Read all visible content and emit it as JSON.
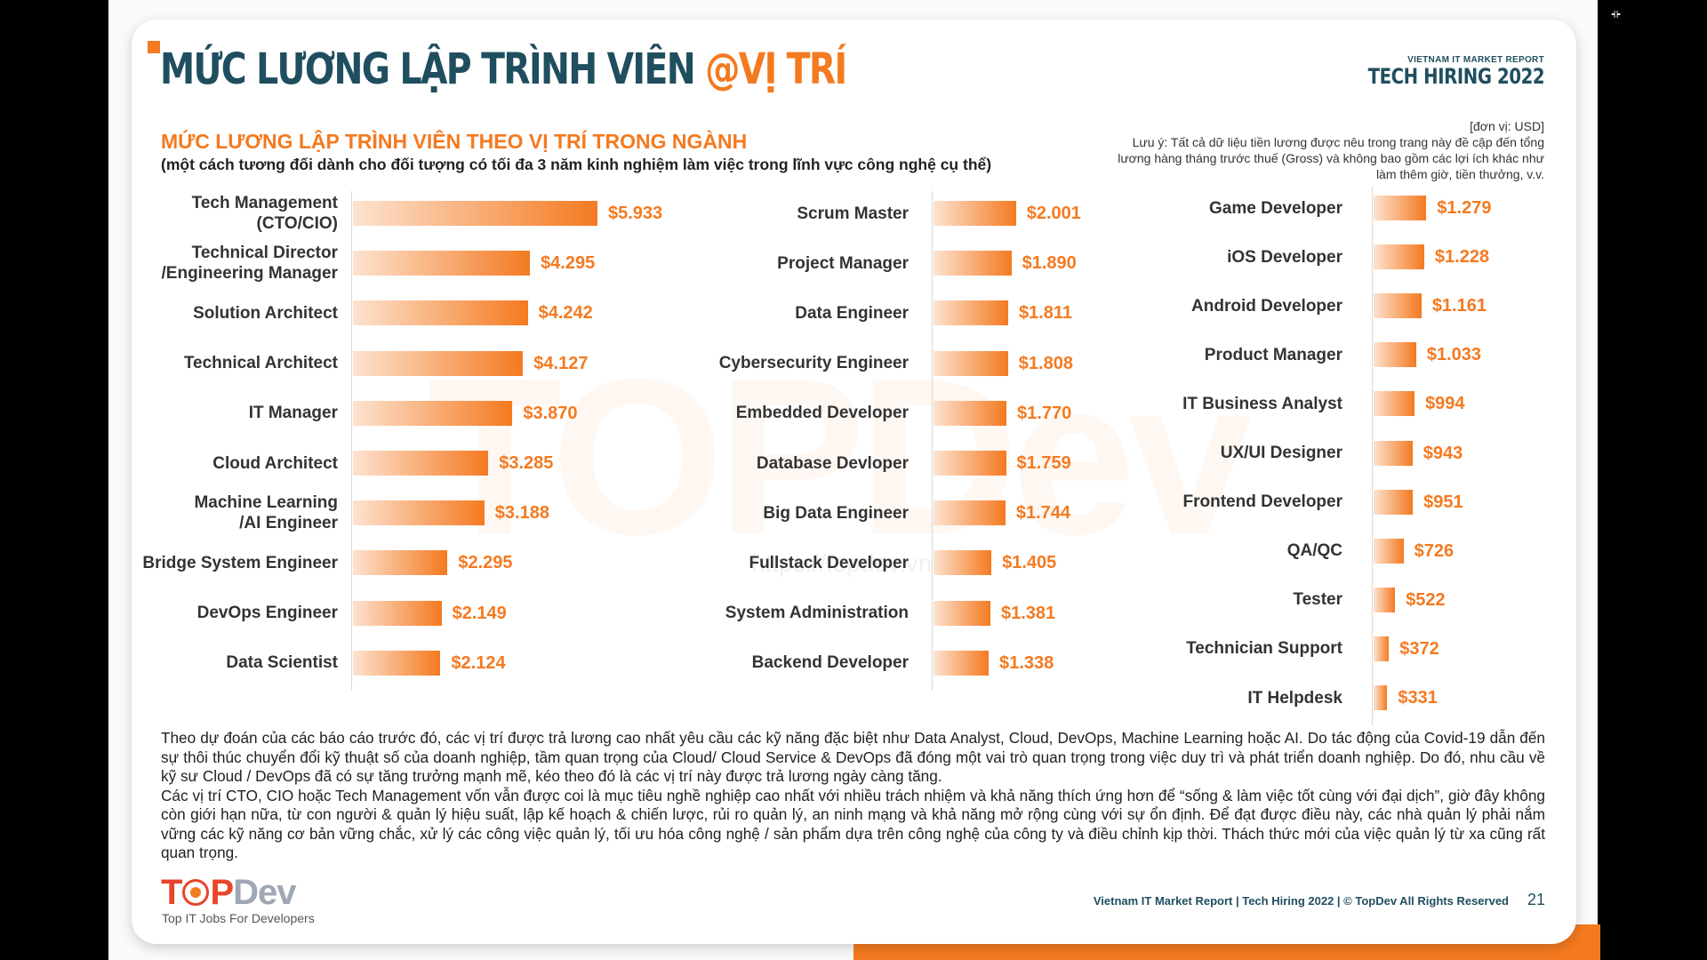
{
  "header": {
    "title_main": "MỨC LƯƠNG LẬP TRÌNH VIÊN",
    "title_accent": "@VỊ TRÍ",
    "brand_small": "VIETNAM IT MARKET REPORT",
    "brand_big": "TECH HIRING 2022"
  },
  "section": {
    "title": "MỨC LƯƠNG LẬP TRÌNH VIÊN THEO VỊ TRÍ TRONG NGÀNH",
    "subtitle": "(một cách tương đối dành cho đối tượng có tối đa 3 năm kinh nghiệm làm việc trong lĩnh vực công nghệ cụ thể)",
    "unit": "[đơn vị: USD]",
    "note": "Lưu ý: Tất cả dữ liệu tiền lương được nêu trong trang này đề cập đến tổng lương hàng tháng trước thuế (Gross) và không bao gồm các lợi ích khác như làm thêm giờ, tiền thưởng, v.v."
  },
  "watermark": {
    "logo": "TOPDev",
    "url": "https://topdev.vn"
  },
  "chart_data": {
    "type": "bar",
    "title": "MỨC LƯƠNG LẬP TRÌNH VIÊN THEO VỊ TRÍ TRONG NGÀNH",
    "unit": "USD",
    "columns": [
      {
        "categories": [
          "Tech Management\n(CTO/CIO)",
          "Technical Director\n/Engineering Manager",
          "Solution Architect",
          "Technical Architect",
          "IT Manager",
          "Cloud Architect",
          "Machine Learning\n/AI Engineer",
          "Bridge System Engineer",
          "DevOps Engineer",
          "Data Scientist"
        ],
        "values": [
          5933,
          4295,
          4242,
          4127,
          3870,
          3285,
          3188,
          2295,
          2149,
          2124
        ],
        "labels": [
          "$5.933",
          "$4.295",
          "$4.242",
          "$4.127",
          "$3.870",
          "$3.285",
          "$3.188",
          "$2.295",
          "$2.149",
          "$2.124"
        ]
      },
      {
        "categories": [
          "Scrum Master",
          "Project Manager",
          "Data Engineer",
          "Cybersecurity Engineer",
          "Embedded Developer",
          "Database Devloper",
          "Big Data Engineer",
          "Fullstack Developer",
          "System Administration",
          "Backend Developer"
        ],
        "values": [
          2001,
          1890,
          1811,
          1808,
          1770,
          1759,
          1744,
          1405,
          1381,
          1338
        ],
        "labels": [
          "$2.001",
          "$1.890",
          "$1.811",
          "$1.808",
          "$1.770",
          "$1.759",
          "$1.744",
          "$1.405",
          "$1.381",
          "$1.338"
        ]
      },
      {
        "categories": [
          "Game Developer",
          "iOS Developer",
          "Android Developer",
          "Product Manager",
          "IT Business Analyst",
          "UX/UI Designer",
          "Frontend Developer",
          "QA/QC",
          "Tester",
          "Technician Support",
          "IT Helpdesk"
        ],
        "values": [
          1279,
          1228,
          1161,
          1033,
          994,
          943,
          951,
          726,
          522,
          372,
          331
        ],
        "labels": [
          "$1.279",
          "$1.228",
          "$1.161",
          "$1.033",
          "$994",
          "$943",
          "$951",
          "$726",
          "$522",
          "$372",
          "$331"
        ]
      }
    ]
  },
  "paragraph": {
    "p1": "Theo dự đoán của các báo cáo trước đó, các vị trí được trả lương cao nhất yêu cầu các kỹ năng đặc biệt như Data Analyst, Cloud, DevOps, Machine Learning hoặc AI. Do tác động của Covid-19 dẫn đến sự thôi thúc chuyển đổi kỹ thuật số của doanh nghiệp, tầm quan trọng của Cloud/ Cloud Service & DevOps đã đóng một vai trò quan trọng trong việc duy trì và phát triển doanh nghiệp. Do đó, nhu cầu về kỹ sư Cloud / DevOps đã có sự tăng trưởng mạnh mẽ, kéo theo đó là các vị trí này được trả lương ngày càng tăng.",
    "p2": "Các vị trí CTO, CIO hoặc Tech Management vốn vẫn được coi là mục tiêu nghề nghiệp cao nhất với nhiều trách nhiệm và khả năng thích ứng hơn để “sống & làm việc tốt cùng với đại dịch”, giờ đây không còn giới hạn nữa, từ con người & quản lý hiệu suất, lập kế hoạch & chiến lược, rủi ro quản lý, an ninh mạng và khả năng mở rộng cùng với sự ổn định. Để đạt được điều này, các nhà quản lý phải nắm vững các kỹ năng cơ bản vững chắc, xử lý các công việc quản lý, tối ưu hóa công nghệ / sản phẩm dựa trên công nghệ của công ty và điều chỉnh kịp thời. Thách thức mới của việc quản lý từ xa cũng rất quan trọng."
  },
  "footer": {
    "logo_t": "T",
    "logo_p": "P",
    "logo_dev": "Dev",
    "tagline": "Top IT Jobs For Developers",
    "text": "Vietnam IT Market Report | Tech Hiring 2022 | © TopDev All Rights Reserved",
    "page": "21"
  },
  "colors": {
    "accent": "#f47a20",
    "navy": "#1f4e5f",
    "logo_red": "#e8452b",
    "logo_gray": "#9ea7b3"
  },
  "icons": {
    "corner": "fullscreen-toggle-icon"
  }
}
